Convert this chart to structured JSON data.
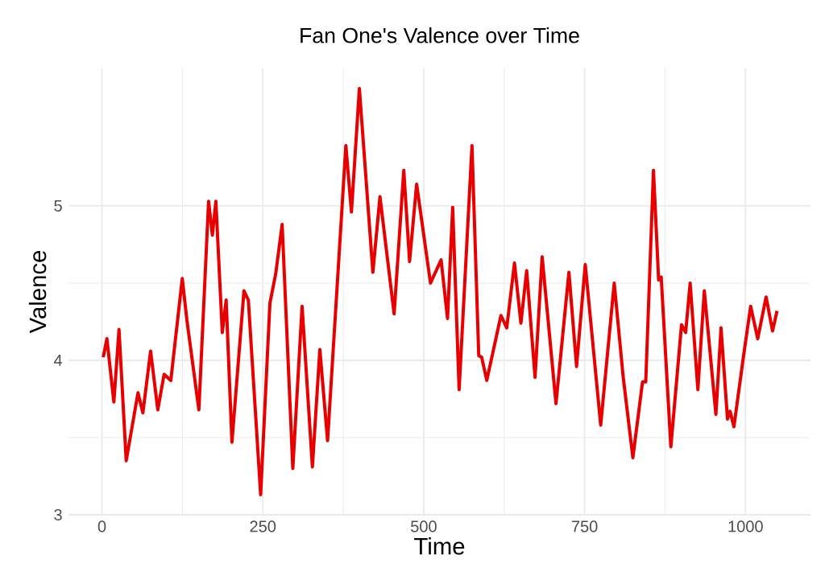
{
  "chart_data": {
    "type": "line",
    "title": "Fan One's Valence over Time",
    "xlabel": "Time",
    "ylabel": "Valence",
    "xlim": [
      -52,
      1101
    ],
    "ylim": [
      3.0,
      5.89
    ],
    "xticks": [
      0,
      250,
      500,
      750,
      1000
    ],
    "yticks": [
      3,
      4,
      5
    ],
    "grid": true,
    "marker": "none",
    "line_style": "solid",
    "series": [
      {
        "color": "#e80000",
        "x": [
          2,
          7.7,
          18.5,
          26.5,
          37.7,
          56,
          63.6,
          75.6,
          86.8,
          96.6,
          107,
          124.8,
          132,
          150.6,
          165.7,
          171.6,
          177,
          187,
          193,
          202,
          220.7,
          227.5,
          246.6,
          261,
          270,
          280,
          296.6,
          311,
          327,
          338.6,
          350.6,
          379,
          387.7,
          400,
          421,
          432,
          454,
          469,
          478,
          489,
          510.5,
          527,
          537,
          545,
          555,
          575,
          585.5,
          590,
          598,
          620,
          629,
          641,
          651,
          660,
          673,
          684,
          705.5,
          725.6,
          737.5,
          751,
          775,
          796,
          810,
          825,
          840,
          845,
          857,
          865,
          869,
          884,
          900.6,
          907,
          914,
          926,
          936,
          954,
          962,
          972,
          976,
          982,
          997,
          1008,
          1019,
          1032,
          1042,
          1049
        ],
        "values": [
          4.02,
          4.14,
          3.73,
          4.2,
          3.35,
          3.79,
          3.66,
          4.06,
          3.68,
          3.91,
          3.87,
          4.53,
          4.26,
          3.68,
          5.03,
          4.81,
          5.03,
          4.18,
          4.39,
          3.47,
          4.45,
          4.39,
          3.13,
          4.37,
          4.56,
          4.88,
          3.3,
          4.35,
          3.31,
          4.07,
          3.48,
          5.39,
          4.96,
          5.76,
          4.57,
          5.06,
          4.3,
          5.23,
          4.64,
          5.14,
          4.5,
          4.65,
          4.27,
          4.99,
          3.81,
          5.39,
          4.03,
          4.02,
          3.87,
          4.29,
          4.21,
          4.63,
          4.24,
          4.58,
          3.89,
          4.67,
          3.72,
          4.57,
          3.96,
          4.62,
          3.58,
          4.5,
          3.89,
          3.37,
          3.86,
          3.86,
          5.23,
          4.52,
          4.54,
          3.44,
          4.23,
          4.18,
          4.5,
          3.81,
          4.45,
          3.65,
          4.21,
          3.62,
          3.67,
          3.57,
          4.03,
          4.35,
          4.14,
          4.41,
          4.19,
          4.32
        ]
      }
    ]
  }
}
